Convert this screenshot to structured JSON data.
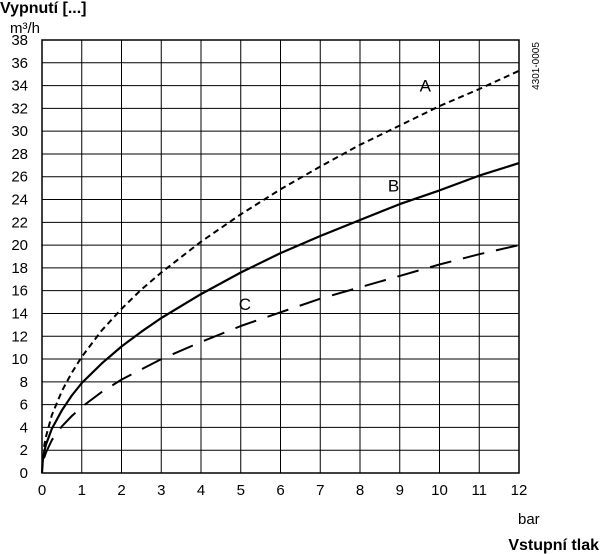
{
  "chart_data": {
    "type": "line",
    "title": "Vypnutí [...]",
    "ylabel": "m³/h",
    "xlabel": "bar",
    "x_axis_title": "Vstupní tlak",
    "code": "4301-0005",
    "xlim": [
      0,
      12
    ],
    "ylim": [
      0,
      38
    ],
    "x_ticks": [
      0,
      1,
      2,
      3,
      4,
      5,
      6,
      7,
      8,
      9,
      10,
      11,
      12
    ],
    "y_ticks": [
      0,
      2,
      4,
      6,
      8,
      10,
      12,
      14,
      16,
      18,
      20,
      22,
      24,
      26,
      28,
      30,
      32,
      34,
      36,
      38
    ],
    "grid": true,
    "series": [
      {
        "name": "A",
        "style": "short-dash",
        "x": [
          0.05,
          0.1,
          0.25,
          0.5,
          0.75,
          1,
          1.5,
          2,
          2.5,
          3,
          4,
          5,
          6,
          7,
          8,
          9,
          10,
          11,
          12
        ],
        "y": [
          2.3,
          3.2,
          5.1,
          7.2,
          8.8,
          10.2,
          12.5,
          14.4,
          16.1,
          17.6,
          20.3,
          22.7,
          24.9,
          26.9,
          28.8,
          30.5,
          32.2,
          33.7,
          35.3
        ]
      },
      {
        "name": "B",
        "style": "solid",
        "x": [
          0,
          0.02,
          0.05,
          0.1,
          0.25,
          0.5,
          0.75,
          1,
          1.5,
          2,
          2.5,
          3,
          4,
          5,
          6,
          7,
          8,
          9,
          10,
          11,
          12
        ],
        "y": [
          0,
          1.1,
          1.8,
          2.5,
          3.9,
          5.5,
          6.8,
          7.9,
          9.6,
          11.1,
          12.4,
          13.6,
          15.7,
          17.6,
          19.3,
          20.8,
          22.2,
          23.6,
          24.8,
          26.1,
          27.2
        ]
      },
      {
        "name": "C",
        "style": "long-dash",
        "x": [
          0.05,
          0.1,
          0.25,
          0.5,
          0.75,
          1,
          1.5,
          2,
          2.5,
          3,
          4,
          5,
          6,
          7,
          8,
          9,
          10,
          11,
          12
        ],
        "y": [
          1.3,
          1.8,
          2.9,
          4.1,
          5.0,
          5.8,
          7.1,
          8.2,
          9.1,
          10.0,
          11.5,
          12.9,
          14.1,
          15.3,
          16.3,
          17.3,
          18.3,
          19.2,
          20.0
        ]
      }
    ]
  }
}
